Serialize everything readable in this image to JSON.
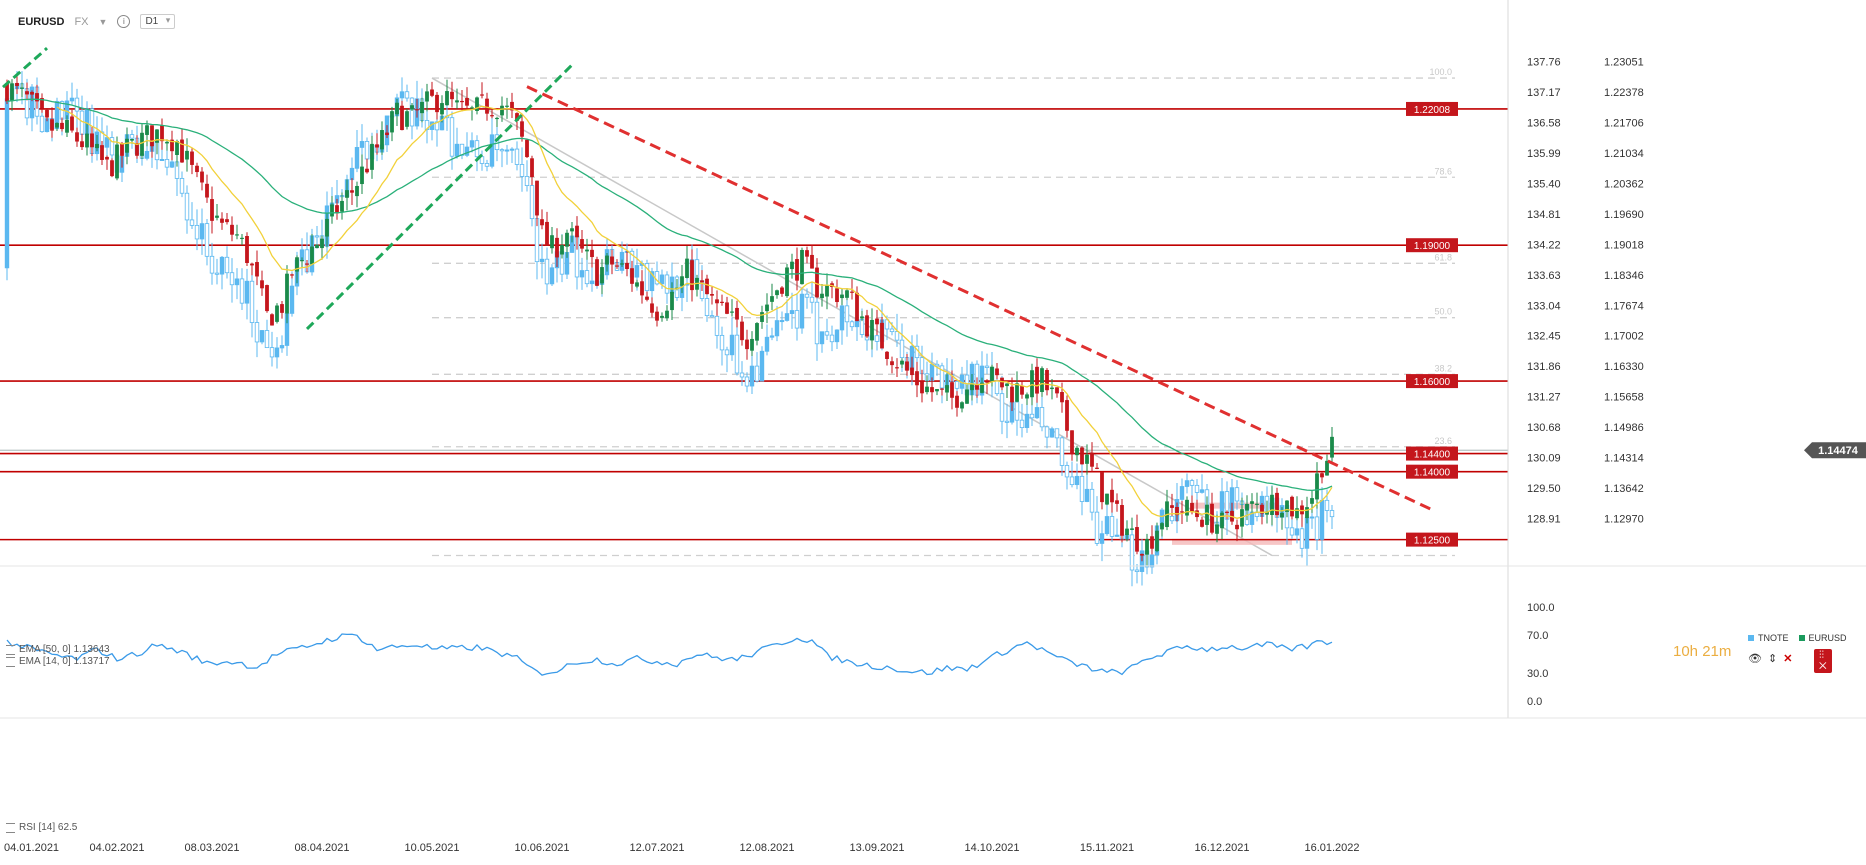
{
  "header": {
    "symbol": "EURUSD",
    "market": "FX",
    "timeframe": "D1"
  },
  "indicators": {
    "ema50_label": "EMA [50, 0] 1.13643",
    "ema14_label": "EMA [14, 0] 1.13717",
    "rsi_label": "RSI [14] 62.5"
  },
  "legend": {
    "series_a": "TNOTE",
    "series_b": "EURUSD",
    "series_a_color": "#5bb8f0",
    "series_b_color": "#1a9a5c"
  },
  "timer": "10h 21m",
  "colors": {
    "bull": "#1a8a4a",
    "bear": "#c4161c",
    "tnote": "#5bb8f0",
    "level_line": "#c00000",
    "trend_red": "#e03030",
    "trend_green": "#1ea85a",
    "ema50": "#2ab07a",
    "ema14": "#f2d13a",
    "rsi": "#3a9ae8",
    "fib": "#cfcfcf",
    "channel": "#c8c8c8",
    "range_box": "#f4b8b8"
  },
  "chart_data": {
    "type": "candlestick",
    "title": "EURUSD",
    "x_tick_labels": [
      "04.01.2021",
      "04.02.2021",
      "08.03.2021",
      "08.04.2021",
      "10.05.2021",
      "10.06.2021",
      "12.07.2021",
      "12.08.2021",
      "13.09.2021",
      "14.10.2021",
      "15.11.2021",
      "16.12.2021",
      "16.01.2022"
    ],
    "x_tick_index": [
      0,
      22,
      41,
      63,
      85,
      107,
      130,
      152,
      174,
      197,
      220,
      243,
      265
    ],
    "y_left_ticks": [
      "137.76",
      "137.17",
      "136.58",
      "135.99",
      "135.40",
      "134.81",
      "134.22",
      "133.63",
      "133.04",
      "132.45",
      "131.86",
      "131.27",
      "130.68",
      "130.09",
      "129.50",
      "128.91"
    ],
    "y_right_ticks": [
      "1.23051",
      "1.22378",
      "1.21706",
      "1.21034",
      "1.20362",
      "1.19690",
      "1.19018",
      "1.18346",
      "1.17674",
      "1.17002",
      "1.16330",
      "1.15658",
      "1.14986",
      "1.14314",
      "1.13642",
      "1.12970"
    ],
    "ylim": [
      1.1205,
      1.2342
    ],
    "support_resistance_levels": [
      {
        "label": "1.22008",
        "value": 1.22008
      },
      {
        "label": "1.19000",
        "value": 1.19
      },
      {
        "label": "1.16000",
        "value": 1.16
      },
      {
        "label": "1.14400",
        "value": 1.144
      },
      {
        "label": "1.14000",
        "value": 1.14
      },
      {
        "label": "1.12500",
        "value": 1.125
      }
    ],
    "current_price": {
      "label": "1.14474",
      "value": 1.14474
    },
    "fibonacci_labels": [
      "100.0",
      "78.6",
      "61.8",
      "50.0",
      "38.2",
      "23.6"
    ],
    "fibonacci_levels": [
      {
        "label": "100.0",
        "value": 1.2269
      },
      {
        "label": "78.6",
        "value": 1.205
      },
      {
        "label": "61.8",
        "value": 1.186
      },
      {
        "label": "50.0",
        "value": 1.174
      },
      {
        "label": "38.2",
        "value": 1.1615
      },
      {
        "label": "23.6",
        "value": 1.1455
      },
      {
        "label": "",
        "value": 1.1215
      }
    ],
    "waypoints": [
      [
        0,
        1.225
      ],
      [
        4,
        1.222
      ],
      [
        8,
        1.216
      ],
      [
        12,
        1.215
      ],
      [
        16,
        1.212
      ],
      [
        20,
        1.207
      ],
      [
        24,
        1.211
      ],
      [
        28,
        1.214
      ],
      [
        31,
        1.215
      ],
      [
        34,
        1.213
      ],
      [
        37,
        1.206
      ],
      [
        40,
        1.199
      ],
      [
        43,
        1.194
      ],
      [
        46,
        1.192
      ],
      [
        48,
        1.188
      ],
      [
        50,
        1.181
      ],
      [
        52,
        1.174
      ],
      [
        55,
        1.177
      ],
      [
        57,
        1.184
      ],
      [
        60,
        1.188
      ],
      [
        63,
        1.192
      ],
      [
        66,
        1.198
      ],
      [
        69,
        1.202
      ],
      [
        72,
        1.208
      ],
      [
        75,
        1.213
      ],
      [
        78,
        1.219
      ],
      [
        81,
        1.218
      ],
      [
        84,
        1.221
      ],
      [
        87,
        1.223
      ],
      [
        90,
        1.22
      ],
      [
        93,
        1.219
      ],
      [
        96,
        1.221
      ],
      [
        99,
        1.221
      ],
      [
        101,
        1.218
      ],
      [
        103,
        1.213
      ],
      [
        105,
        1.206
      ],
      [
        107,
        1.192
      ],
      [
        109,
        1.189
      ],
      [
        112,
        1.193
      ],
      [
        115,
        1.188
      ],
      [
        118,
        1.184
      ],
      [
        121,
        1.186
      ],
      [
        124,
        1.184
      ],
      [
        127,
        1.18
      ],
      [
        130,
        1.176
      ],
      [
        133,
        1.179
      ],
      [
        136,
        1.184
      ],
      [
        139,
        1.18
      ],
      [
        142,
        1.176
      ],
      [
        145,
        1.173
      ],
      [
        148,
        1.17
      ],
      [
        150,
        1.174
      ],
      [
        153,
        1.179
      ],
      [
        156,
        1.184
      ],
      [
        159,
        1.186
      ],
      [
        162,
        1.181
      ],
      [
        165,
        1.18
      ],
      [
        168,
        1.179
      ],
      [
        171,
        1.174
      ],
      [
        174,
        1.17
      ],
      [
        177,
        1.166
      ],
      [
        180,
        1.162
      ],
      [
        183,
        1.159
      ],
      [
        186,
        1.157
      ],
      [
        189,
        1.156
      ],
      [
        192,
        1.159
      ],
      [
        195,
        1.162
      ],
      [
        198,
        1.16
      ],
      [
        201,
        1.158
      ],
      [
        204,
        1.159
      ],
      [
        207,
        1.16
      ],
      [
        210,
        1.155
      ],
      [
        213,
        1.147
      ],
      [
        216,
        1.142
      ],
      [
        219,
        1.136
      ],
      [
        222,
        1.13
      ],
      [
        225,
        1.126
      ],
      [
        228,
        1.124
      ],
      [
        231,
        1.13
      ],
      [
        234,
        1.132
      ],
      [
        237,
        1.131
      ],
      [
        240,
        1.13
      ],
      [
        243,
        1.128
      ],
      [
        246,
        1.13
      ],
      [
        249,
        1.132
      ],
      [
        252,
        1.133
      ],
      [
        255,
        1.134
      ],
      [
        258,
        1.131
      ],
      [
        261,
        1.135
      ],
      [
        263,
        1.142
      ],
      [
        265,
        1.1447
      ]
    ],
    "rsi": {
      "label": "RSI [14] 62.5",
      "ticks": [
        "100.0",
        "70.0",
        "30.0",
        "0.0"
      ],
      "ylim": [
        0,
        100
      ],
      "waypoints": [
        [
          0,
          63
        ],
        [
          5,
          55
        ],
        [
          10,
          48
        ],
        [
          14,
          45
        ],
        [
          18,
          55
        ],
        [
          22,
          45
        ],
        [
          26,
          50
        ],
        [
          30,
          60
        ],
        [
          35,
          52
        ],
        [
          40,
          40
        ],
        [
          45,
          42
        ],
        [
          50,
          36
        ],
        [
          54,
          50
        ],
        [
          58,
          55
        ],
        [
          63,
          63
        ],
        [
          66,
          68
        ],
        [
          70,
          70
        ],
        [
          74,
          55
        ],
        [
          78,
          58
        ],
        [
          82,
          60
        ],
        [
          86,
          55
        ],
        [
          90,
          56
        ],
        [
          94,
          57
        ],
        [
          98,
          52
        ],
        [
          102,
          45
        ],
        [
          106,
          30
        ],
        [
          110,
          32
        ],
        [
          114,
          42
        ],
        [
          118,
          44
        ],
        [
          122,
          40
        ],
        [
          126,
          45
        ],
        [
          130,
          42
        ],
        [
          134,
          40
        ],
        [
          138,
          50
        ],
        [
          142,
          46
        ],
        [
          146,
          44
        ],
        [
          150,
          52
        ],
        [
          154,
          60
        ],
        [
          158,
          68
        ],
        [
          161,
          64
        ],
        [
          164,
          48
        ],
        [
          168,
          42
        ],
        [
          172,
          38
        ],
        [
          176,
          36
        ],
        [
          180,
          32
        ],
        [
          184,
          30
        ],
        [
          188,
          35
        ],
        [
          192,
          34
        ],
        [
          196,
          44
        ],
        [
          200,
          54
        ],
        [
          204,
          62
        ],
        [
          208,
          52
        ],
        [
          212,
          42
        ],
        [
          216,
          36
        ],
        [
          220,
          30
        ],
        [
          224,
          32
        ],
        [
          228,
          45
        ],
        [
          232,
          52
        ],
        [
          236,
          58
        ],
        [
          240,
          55
        ],
        [
          244,
          58
        ],
        [
          248,
          56
        ],
        [
          252,
          60
        ],
        [
          256,
          55
        ],
        [
          260,
          58
        ],
        [
          263,
          64
        ],
        [
          265,
          62
        ]
      ]
    }
  }
}
